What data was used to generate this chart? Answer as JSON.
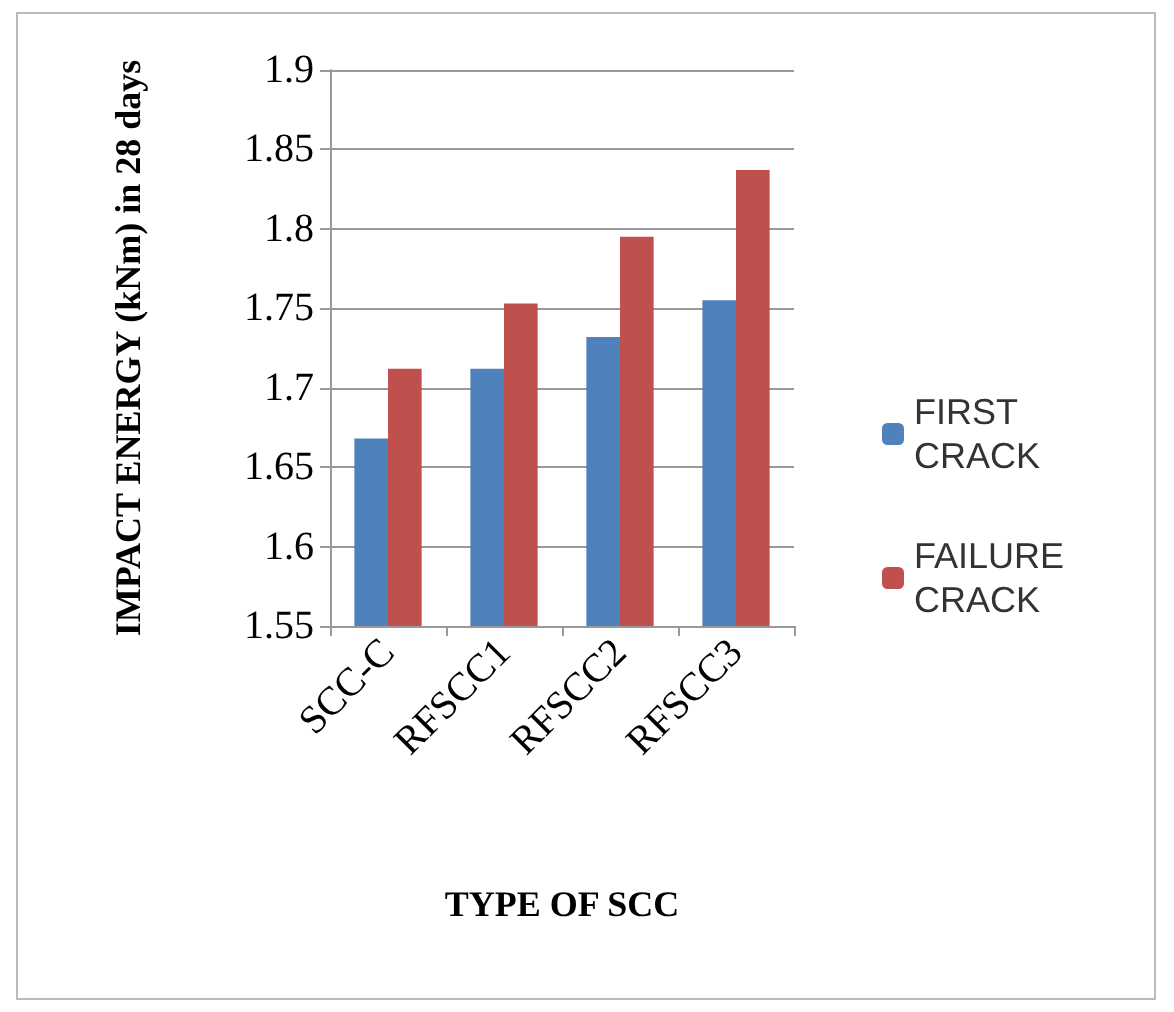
{
  "chart_data": {
    "type": "bar",
    "xlabel": "TYPE OF SCC",
    "ylabel": "IMPACT ENERGY (kNm) in 28 days",
    "categories": [
      "SCC-C",
      "RFSCC1",
      "RFSCC2",
      "RFSCC3"
    ],
    "series": [
      {
        "name": "FIRST CRACK",
        "color": "#4f81bd",
        "values": [
          1.668,
          1.712,
          1.732,
          1.755
        ]
      },
      {
        "name": "FAILURE CRACK",
        "color": "#c0504d",
        "values": [
          1.712,
          1.753,
          1.795,
          1.837
        ]
      }
    ],
    "ylim": [
      1.55,
      1.9
    ],
    "yticks": [
      1.55,
      1.6,
      1.65,
      1.7,
      1.75,
      1.8,
      1.85,
      1.9
    ],
    "grid": "y",
    "legend": "right"
  }
}
